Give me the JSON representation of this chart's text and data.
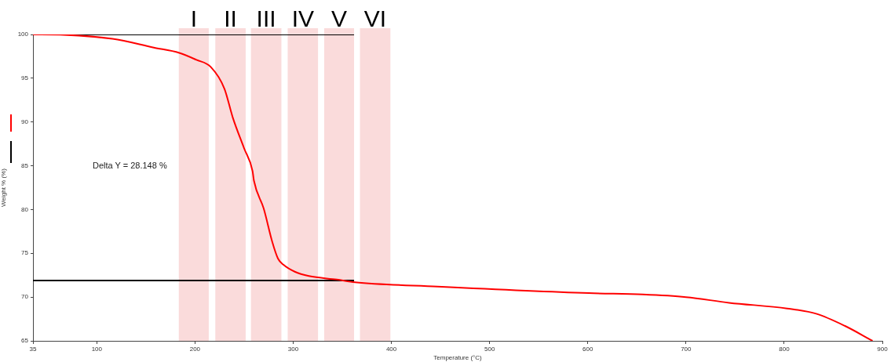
{
  "chart_data": {
    "type": "line",
    "xlabel": "Temperature (°C)",
    "ylabel": "Weight % (%)",
    "series": [
      {
        "color": "#ff0000",
        "x": [
          35,
          43,
          116,
          158,
          184,
          201.5,
          216,
          230,
          238.5,
          250,
          258.6,
          260,
          270,
          278.7,
          284.5,
          290,
          301.6,
          316,
          344.5,
          363,
          447,
          601,
          656,
          700,
          744,
          803,
          832.6,
          862,
          890
        ],
        "values": [
          100,
          100,
          99.5,
          98.5,
          97.9,
          97.1,
          96.3,
          93.8,
          90.5,
          87,
          84.4,
          83.3,
          80.1,
          76.3,
          74.4,
          73.7,
          72.9,
          72.4,
          72,
          71.7,
          71.2,
          70.45,
          70.3,
          70,
          69.35,
          68.7,
          68.1,
          66.7,
          65
        ]
      },
      {
        "color": "#000000",
        "x": [
          35,
          362
        ],
        "values": [
          100,
          100
        ]
      },
      {
        "color": "#000000",
        "x": [
          35,
          362
        ],
        "values": [
          71.9,
          71.9
        ]
      }
    ],
    "bands": [
      {
        "axis": "x",
        "from": 183.5,
        "to": 214,
        "label": "I",
        "color": "#fadbdb"
      },
      {
        "axis": "x",
        "from": 220.7,
        "to": 251.6,
        "label": "II",
        "color": "#fadbdb"
      },
      {
        "axis": "x",
        "from": 257,
        "to": 288,
        "label": "III",
        "color": "#fadbdb"
      },
      {
        "axis": "x",
        "from": 294.4,
        "to": 325.3,
        "label": "IV",
        "color": "#fadbdb"
      },
      {
        "axis": "x",
        "from": 331.6,
        "to": 362,
        "label": "V",
        "color": "#fadbdb"
      },
      {
        "axis": "x",
        "from": 368,
        "to": 399,
        "label": "VI",
        "color": "#fadbdb"
      }
    ],
    "annotations": [
      "Delta Y = 28.148 %"
    ],
    "xlim": [
      35,
      900
    ],
    "xticks": [
      35,
      100,
      200,
      300,
      400,
      500,
      600,
      700,
      800,
      900
    ],
    "ylim": [
      65,
      100
    ],
    "yticks": [
      65,
      70,
      75,
      80,
      85,
      90,
      95,
      100
    ],
    "grid": false,
    "legend": false,
    "marker": "none",
    "line_style": "solid"
  }
}
